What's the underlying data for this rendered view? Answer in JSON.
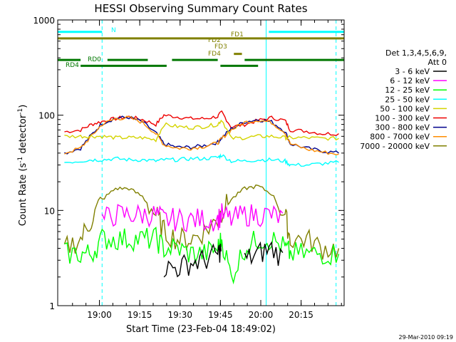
{
  "chart_data": {
    "type": "line",
    "title": "HESSI Observing Summary Count Rates",
    "xlabel": "Start Time (23-Feb-04 18:49:02)",
    "ylabel": "Count Rate (s⁻¹ detector⁻¹)",
    "ylabel_main": "Count Rate (s",
    "ylabel_sup1": "-1",
    "ylabel_mid": " detector",
    "ylabel_sup2": "-1",
    "ylabel_end": ")",
    "footer": "29-Mar-2010 09:19",
    "legend": {
      "position": "right",
      "header_line1": "Det 1,3,4,5,6,9,",
      "header_line2": "Att 0",
      "entries": [
        {
          "label": "3 - 6 keV",
          "color": "#000000"
        },
        {
          "label": "6 - 12 keV",
          "color": "#ff00ff"
        },
        {
          "label": "12 - 25 keV",
          "color": "#00ff00"
        },
        {
          "label": "25 - 50 keV",
          "color": "#00ffff"
        },
        {
          "label": "50 - 100 keV",
          "color": "#d4d400"
        },
        {
          "label": "100 - 300 keV",
          "color": "#ee0000"
        },
        {
          "label": "300 - 800 keV",
          "color": "#00008b"
        },
        {
          "label": "800 - 7000 keV",
          "color": "#ff8c00"
        },
        {
          "label": "7000 - 20000 keV",
          "color": "#808000"
        }
      ]
    },
    "x_ticks": [
      "19:00",
      "19:15",
      "19:30",
      "19:45",
      "20:00",
      "20:15"
    ],
    "x_tick_minutes": [
      11,
      26,
      41,
      56,
      71,
      86
    ],
    "x_range_minutes": [
      -4.5,
      102
    ],
    "y_ticks": [
      "1",
      "10",
      "100",
      "1000"
    ],
    "y_tick_values": [
      1,
      10,
      100,
      1000
    ],
    "ylim": [
      1,
      1000
    ],
    "y_scale": "log",
    "x_minutes": [
      -2,
      4,
      8,
      12,
      17,
      22,
      27,
      32,
      35,
      40,
      45,
      50,
      55,
      56.5,
      60,
      65,
      70,
      75,
      80,
      82,
      88,
      94,
      100
    ],
    "series": [
      {
        "name": "100 - 300 keV",
        "color": "#ee0000",
        "values": [
          67,
          70,
          80,
          86,
          92,
          96,
          90,
          80,
          100,
          96,
          92,
          92,
          97,
          108,
          75,
          80,
          88,
          94,
          88,
          70,
          68,
          64,
          64
        ]
      },
      {
        "name": "300 - 800 keV",
        "color": "#00008b",
        "values": [
          40,
          45,
          62,
          82,
          93,
          95,
          85,
          65,
          50,
          46,
          46,
          48,
          52,
          58,
          72,
          85,
          90,
          85,
          68,
          50,
          45,
          42,
          40
        ]
      },
      {
        "name": "800 - 7000 keV",
        "color": "#ff8c00",
        "values": [
          40,
          45,
          60,
          80,
          92,
          94,
          84,
          64,
          49,
          45,
          45,
          47,
          51,
          57,
          70,
          84,
          89,
          84,
          66,
          50,
          44,
          41,
          39
        ]
      },
      {
        "name": "50 - 100 keV",
        "color": "#d4d400",
        "values": [
          60,
          60,
          60,
          60,
          58,
          58,
          58,
          55,
          80,
          76,
          74,
          76,
          80,
          90,
          57,
          58,
          60,
          60,
          58,
          58,
          58,
          57,
          57
        ]
      },
      {
        "name": "25 - 50 keV",
        "color": "#00ffff",
        "values": [
          32,
          33,
          34,
          34,
          35,
          34,
          34,
          33,
          34,
          34,
          35,
          35,
          36,
          38,
          33,
          33,
          34,
          34,
          33,
          30,
          30,
          31,
          32
        ]
      },
      {
        "name": "7000 - 20000 keV",
        "color": "#808000",
        "values": [
          4,
          5,
          8,
          13,
          17,
          17,
          14,
          9,
          6,
          5,
          5,
          6,
          8,
          10,
          13,
          17,
          18,
          15,
          9,
          5,
          5,
          4,
          4
        ]
      },
      {
        "name": "6 - 12 keV",
        "color": "#ff00ff",
        "values": [
          0,
          0,
          0,
          8,
          9,
          9,
          9,
          9,
          8,
          8,
          8,
          8,
          8,
          9,
          8,
          9,
          9,
          9,
          8,
          0,
          0,
          0,
          0
        ]
      },
      {
        "name": "12 - 25 keV",
        "color": "#00ff00",
        "values": [
          3.5,
          3.5,
          3.5,
          5,
          5,
          5,
          5,
          5,
          4,
          4,
          3.5,
          3.5,
          4,
          5,
          2,
          4,
          5,
          5,
          4,
          3.5,
          3.5,
          3.5,
          3.5
        ]
      },
      {
        "name": "3 - 6 keV",
        "color": "#000000",
        "values": [
          0,
          0,
          0,
          0,
          0,
          0,
          0,
          0,
          2.5,
          2.5,
          2.8,
          3,
          3.5,
          4,
          0,
          3,
          3.5,
          4,
          3,
          0,
          0,
          0,
          0
        ]
      }
    ],
    "annotations": [
      {
        "label": "N",
        "color": "#00ffff"
      },
      {
        "label": "FD1",
        "color": "#808000"
      },
      {
        "label": "FD2",
        "color": "#808000"
      },
      {
        "label": "FD3",
        "color": "#808000"
      },
      {
        "label": "FD4",
        "color": "#808000"
      },
      {
        "label": "RD0",
        "color": "#007700"
      },
      {
        "label": "RD4",
        "color": "#007700"
      }
    ],
    "event_bars": [
      {
        "name": "night",
        "color": "#00ffff",
        "y": 750,
        "segments": [
          [
            -4.5,
            12
          ],
          [
            74,
            102
          ]
        ]
      },
      {
        "name": "fd1",
        "color": "#808000",
        "y": 640,
        "segments": [
          [
            -4.5,
            102
          ]
        ]
      },
      {
        "name": "fd4",
        "color": "#808000",
        "y": 440,
        "segments": [
          [
            61,
            64
          ]
        ]
      },
      {
        "name": "rd0",
        "color": "#007700",
        "y": 380,
        "segments": [
          [
            -4.5,
            4
          ],
          [
            14,
            29
          ],
          [
            38,
            55
          ],
          [
            65,
            102
          ]
        ]
      },
      {
        "name": "rd4",
        "color": "#007700",
        "y": 330,
        "segments": [
          [
            4,
            36
          ],
          [
            56,
            70
          ]
        ]
      }
    ],
    "vlines_solid_minutes": [
      -4.5,
      73
    ],
    "vlines_dashed_minutes": [
      12,
      99
    ],
    "grid": false
  }
}
